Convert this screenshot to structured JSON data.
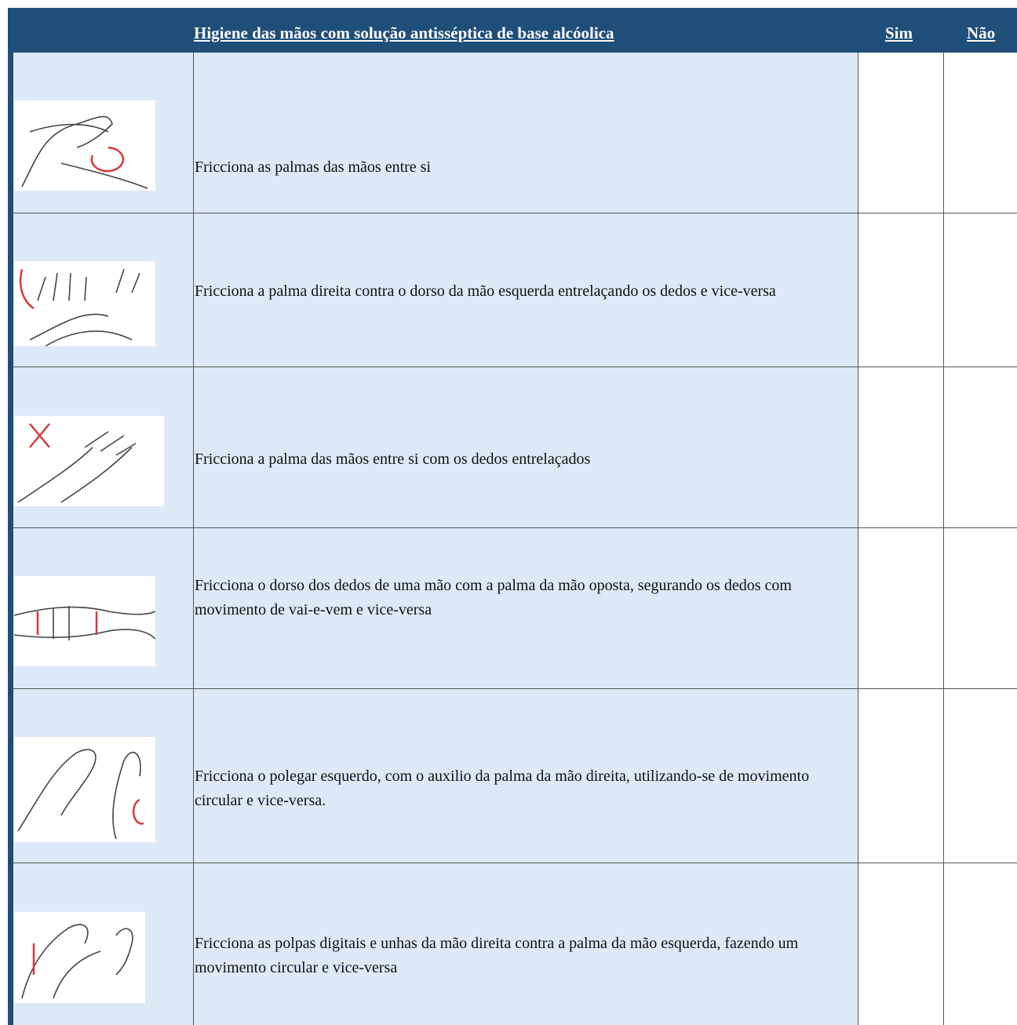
{
  "header": {
    "title": "Higiene das mãos com solução antisséptica de base alcóolica",
    "yes": "Sim",
    "no": "Não"
  },
  "rows": [
    "Fricciona as palmas das mãos entre si",
    "Fricciona a palma direita contra o dorso da mão esquerda entrelaçando os dedos e vice-versa",
    "Fricciona a palma das mãos entre si com os dedos entrelaçados",
    "Fricciona o dorso dos dedos de uma mão com a palma da mão oposta, segurando os dedos com movimento de vai-e-vem e vice-versa",
    "Fricciona o polegar esquerdo, com o auxilio da palma da mão direita, utilizando-se de movimento circular e vice-versa.",
    "Fricciona as polpas digitais e unhas da mão direita contra a palma da mão esquerda, fazendo um movimento circular e vice-versa"
  ]
}
